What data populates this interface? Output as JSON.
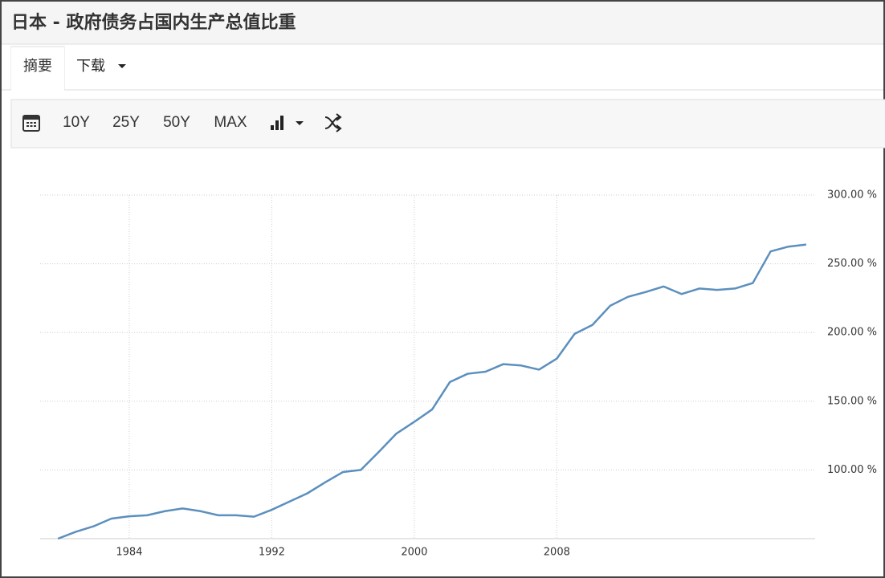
{
  "header": {
    "title": "日本 - 政府债务占国内生产总值比重"
  },
  "tabs": [
    "摘要",
    "下载"
  ],
  "toolbar": [
    "10Y",
    "25Y",
    "50Y",
    "MAX"
  ],
  "chart_data": {
    "type": "line",
    "x": [
      1980,
      1981,
      1982,
      1983,
      1984,
      1985,
      1986,
      1987,
      1988,
      1989,
      1990,
      1991,
      1992,
      1993,
      1994,
      1995,
      1996,
      1997,
      1998,
      1999,
      2000,
      2001,
      2002,
      2003,
      2004,
      2005,
      2006,
      2007,
      2008,
      2009,
      2010,
      2011,
      2012,
      2013,
      2014,
      2015,
      2016,
      2017,
      2018,
      2019,
      2020,
      2021,
      2022
    ],
    "values": [
      50,
      55,
      59,
      64.6,
      66.3,
      67,
      70,
      72,
      70,
      67,
      67,
      66,
      71,
      77,
      83,
      91,
      98.5,
      100,
      113,
      126.5,
      135,
      144,
      164,
      170,
      171.5,
      177,
      176,
      173,
      181,
      199,
      205.5,
      219.5,
      226,
      229.5,
      233.5,
      228,
      232,
      231,
      232,
      236,
      259,
      262.5,
      264
    ],
    "color": "#5b8fbe",
    "xlim": [
      1979,
      2022.5
    ],
    "xticks": [
      1984,
      1992,
      2000,
      2008
    ],
    "ylim": [
      50,
      300
    ],
    "yticks": [
      {
        "value": 100,
        "label": "100.00 %"
      },
      {
        "value": 150,
        "label": "150.00 %"
      },
      {
        "value": 200,
        "label": "200.00 %"
      },
      {
        "value": 250,
        "label": "250.00 %"
      },
      {
        "value": 300,
        "label": "300.00 %"
      }
    ],
    "grid": true
  }
}
